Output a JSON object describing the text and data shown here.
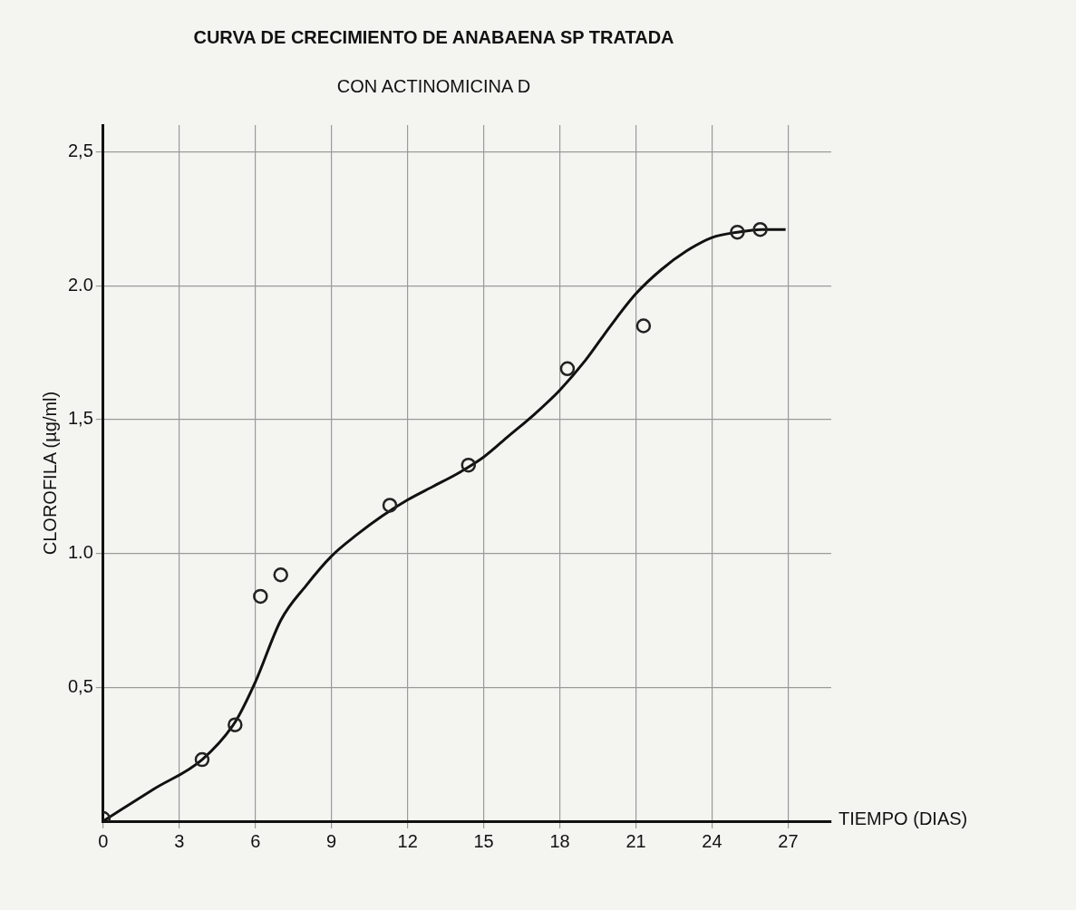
{
  "chart_data": {
    "type": "scatter",
    "title": "CURVA DE CRECIMIENTO DE ANABAENA SP TRATADA",
    "subtitle": "CON ACTINOMICINA D",
    "xlabel": "TIEMPO (DIAS)",
    "ylabel": "CLOROFILA (µg/ml)",
    "series": [
      {
        "color": "#222222",
        "marker": "circle",
        "x": [
          0,
          3.9,
          5.2,
          6.2,
          7.0,
          11.3,
          14.4,
          18.3,
          21.3,
          25.0,
          25.9
        ],
        "values": [
          0.01,
          0.23,
          0.36,
          0.84,
          0.92,
          1.18,
          1.33,
          1.69,
          1.85,
          2.2,
          2.21
        ]
      },
      {
        "type": "line",
        "color": "#111111",
        "marker": "none",
        "line_style": "solid",
        "x": [
          0,
          2,
          3.9,
          5.2,
          6,
          7,
          8,
          9,
          10,
          11,
          12,
          13,
          14,
          15,
          16,
          17,
          18,
          19,
          20,
          21,
          22,
          23,
          24,
          25,
          26,
          26.9
        ],
        "values": [
          0,
          0.12,
          0.23,
          0.37,
          0.52,
          0.75,
          0.88,
          0.99,
          1.07,
          1.14,
          1.2,
          1.25,
          1.3,
          1.36,
          1.44,
          1.52,
          1.61,
          1.72,
          1.85,
          1.97,
          2.06,
          2.13,
          2.18,
          2.2,
          2.21,
          2.21
        ]
      }
    ],
    "xlim": [
      0,
      28.7
    ],
    "ylim": [
      0,
      2.6
    ],
    "xticks": [
      0,
      3,
      6,
      9,
      12,
      15,
      18,
      21,
      24,
      27
    ],
    "yticks": [
      {
        "value": 0.5,
        "label": "0,5"
      },
      {
        "value": 1,
        "label": "1.0"
      },
      {
        "value": 1.5,
        "label": "1,5"
      },
      {
        "value": 2,
        "label": "2.0"
      },
      {
        "value": 2.5,
        "label": "2,5"
      }
    ],
    "grid": true,
    "legend": false
  }
}
